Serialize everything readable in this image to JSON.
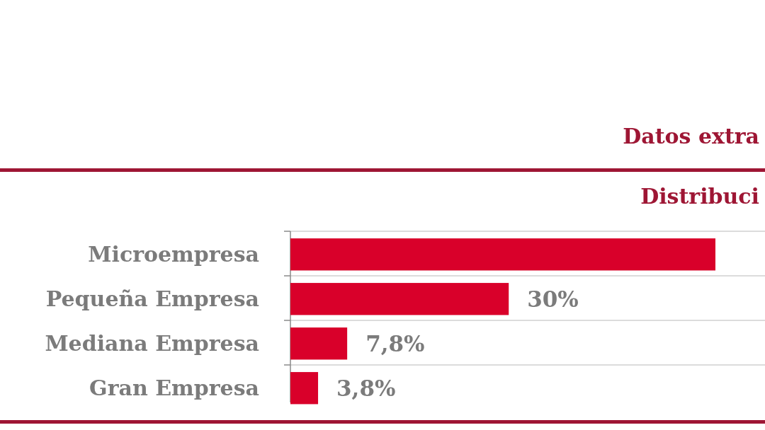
{
  "chart_data": {
    "type": "bar",
    "orientation": "horizontal",
    "title": "Datos extra",
    "subtitle": "Distribuci",
    "categories": [
      "Microempresa",
      "Pequeña Empresa",
      "Mediana Empresa",
      "Gran Empresa"
    ],
    "values": [
      58.4,
      30,
      7.8,
      3.8
    ],
    "color": "#d9002a",
    "value_labels": [
      null,
      "30%",
      "7,8%",
      "3,8%"
    ],
    "grid": "y"
  }
}
